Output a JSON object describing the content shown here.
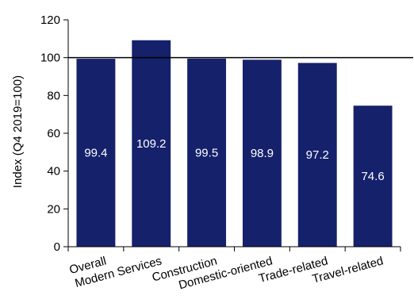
{
  "chart_data": {
    "type": "bar",
    "categories": [
      "Overall",
      "Modern Services",
      "Construction",
      "Domestic-oriented",
      "Trade-related",
      "Travel-related"
    ],
    "values": [
      99.4,
      109.2,
      99.5,
      98.9,
      97.2,
      74.6
    ],
    "data_labels": [
      "99.4",
      "109.2",
      "99.5",
      "98.9",
      "97.2",
      "74.6"
    ],
    "ylabel": "Index (Q4 2019=100)",
    "xlabel": "",
    "ylim": [
      0,
      120
    ],
    "yticks": [
      0,
      20,
      40,
      60,
      80,
      100,
      120
    ],
    "reference_line": 100,
    "grid": false,
    "legend": "none",
    "colors": {
      "bar": "#15216b",
      "reference_line": "#000000",
      "data_label": "#ffffff"
    }
  }
}
